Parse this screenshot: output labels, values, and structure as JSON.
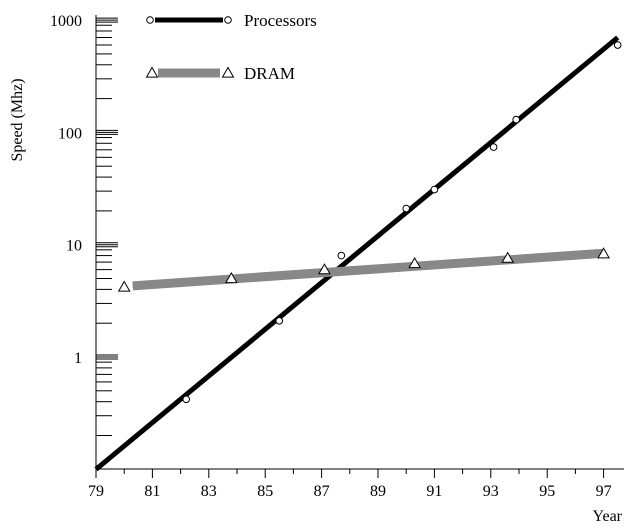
{
  "chart_data": {
    "type": "line",
    "title": "",
    "xlabel": "Year",
    "ylabel": "Speed (Mhz)",
    "yscale": "log",
    "xlim": [
      79,
      97.5
    ],
    "ylim": [
      0.1,
      1000
    ],
    "x_ticks": [
      "79",
      "81",
      "83",
      "85",
      "87",
      "89",
      "91",
      "93",
      "95",
      "97"
    ],
    "y_ticks": [
      "1000",
      "100",
      "10",
      "1"
    ],
    "y_tick_values": [
      1000,
      100,
      10,
      1
    ],
    "grid": false,
    "legend_position": "top-left",
    "series": [
      {
        "name": "Processors",
        "color": "#000000",
        "marker": "circle",
        "trend": [
          [
            79,
            0.1
          ],
          [
            97.5,
            700
          ]
        ],
        "points": [
          [
            82.2,
            0.42
          ],
          [
            85.5,
            2.1
          ],
          [
            87.7,
            8.0
          ],
          [
            90.0,
            21
          ],
          [
            91.0,
            31
          ],
          [
            93.1,
            74
          ],
          [
            93.9,
            130
          ],
          [
            97.5,
            600
          ]
        ]
      },
      {
        "name": "DRAM",
        "color": "#888888",
        "marker": "triangle",
        "trend": [
          [
            80.3,
            4.3
          ],
          [
            97,
            8.4
          ]
        ],
        "points": [
          [
            80.0,
            4.2
          ],
          [
            83.8,
            5.0
          ],
          [
            87.1,
            6.0
          ],
          [
            90.3,
            6.8
          ],
          [
            93.6,
            7.6
          ],
          [
            97.0,
            8.3
          ]
        ]
      }
    ]
  }
}
